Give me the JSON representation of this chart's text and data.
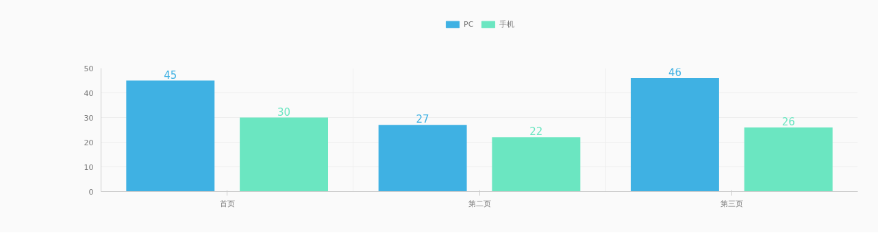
{
  "chart_data": {
    "type": "bar",
    "categories": [
      "首页",
      "第二页",
      "第三页"
    ],
    "series": [
      {
        "name": "PC",
        "color": "#3fb1e3",
        "values": [
          45,
          27,
          46
        ]
      },
      {
        "name": "手机",
        "color": "#6be6c1",
        "values": [
          30,
          22,
          26
        ]
      }
    ],
    "ylim": [
      0,
      50
    ],
    "yticks": [
      0,
      10,
      20,
      30,
      40,
      50
    ],
    "grid": true,
    "legend": "top",
    "data_labels": true
  }
}
